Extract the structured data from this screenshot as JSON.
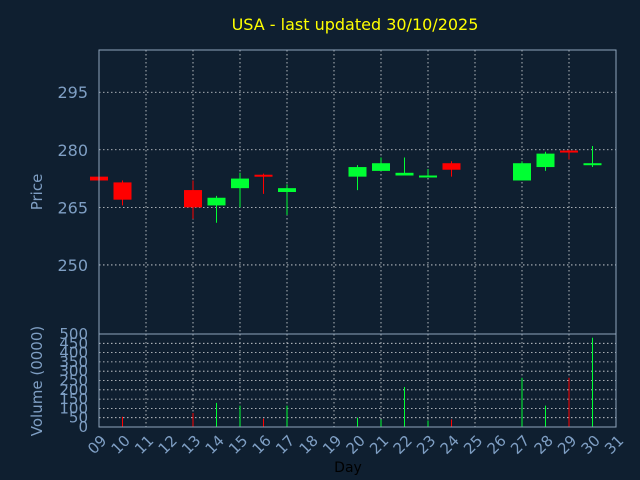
{
  "chart_data": {
    "type": "candlestick",
    "title": "USA - last updated 30/10/2025",
    "xlabel": "Day",
    "ylabel": "Price",
    "volume_label": "Volume (0000)",
    "colors": {
      "background": "#0f1f30",
      "up": "#00ff33",
      "down": "#ff0000",
      "title": "#ffff00",
      "axis_text": "#7f9fc4",
      "grid": "#ffffff"
    },
    "x_ticks": [
      "09",
      "10",
      "11",
      "12",
      "13",
      "14",
      "15",
      "16",
      "17",
      "18",
      "19",
      "20",
      "21",
      "22",
      "23",
      "24",
      "25",
      "26",
      "27",
      "28",
      "29",
      "30",
      "31"
    ],
    "x_range": [
      9,
      31
    ],
    "price_ticks": [
      250,
      265,
      280,
      295
    ],
    "price_range": [
      232,
      306
    ],
    "volume_ticks": [
      0,
      50,
      100,
      150,
      200,
      250,
      300,
      350,
      400,
      450,
      500
    ],
    "volume_range": [
      0,
      500
    ],
    "candles": [
      {
        "day": 9,
        "open": 273.0,
        "close": 272.0,
        "high": 273.3,
        "low": 271.8,
        "volume": 0
      },
      {
        "day": 10,
        "open": 271.5,
        "close": 267.0,
        "high": 272.0,
        "low": 265.5,
        "volume": 55
      },
      {
        "day": 13,
        "open": 269.5,
        "close": 265.0,
        "high": 272.0,
        "low": 262.0,
        "volume": 75
      },
      {
        "day": 14,
        "open": 265.5,
        "close": 267.5,
        "high": 268.0,
        "low": 261.0,
        "volume": 130
      },
      {
        "day": 15,
        "open": 270.0,
        "close": 272.5,
        "high": 274.0,
        "low": 265.0,
        "volume": 115
      },
      {
        "day": 16,
        "open": 273.5,
        "close": 273.0,
        "high": 273.8,
        "low": 268.5,
        "volume": 45
      },
      {
        "day": 17,
        "open": 269.0,
        "close": 270.0,
        "high": 271.0,
        "low": 263.0,
        "volume": 115
      },
      {
        "day": 20,
        "open": 273.0,
        "close": 275.5,
        "high": 276.0,
        "low": 269.5,
        "volume": 50
      },
      {
        "day": 21,
        "open": 274.5,
        "close": 276.5,
        "high": 278.0,
        "low": 274.5,
        "volume": 40
      },
      {
        "day": 22,
        "open": 273.3,
        "close": 274.0,
        "high": 278.0,
        "low": 273.3,
        "volume": 215
      },
      {
        "day": 23,
        "open": 272.8,
        "close": 273.3,
        "high": 275.0,
        "low": 272.8,
        "volume": 35
      },
      {
        "day": 24,
        "open": 276.5,
        "close": 274.8,
        "high": 277.0,
        "low": 273.0,
        "volume": 40
      },
      {
        "day": 27,
        "open": 272.0,
        "close": 276.5,
        "high": 277.0,
        "low": 272.0,
        "volume": 265
      },
      {
        "day": 28,
        "open": 275.5,
        "close": 279.0,
        "high": 279.5,
        "low": 274.5,
        "volume": 115
      },
      {
        "day": 29,
        "open": 279.8,
        "close": 279.3,
        "high": 280.0,
        "low": 277.5,
        "volume": 265
      },
      {
        "day": 30,
        "open": 276.0,
        "close": 276.5,
        "high": 281.0,
        "low": 275.5,
        "volume": 480
      }
    ]
  }
}
